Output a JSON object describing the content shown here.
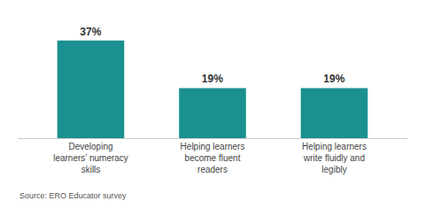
{
  "chart_data": {
    "type": "bar",
    "categories": [
      "Developing\nlearners’ numeracy\nskills",
      "Helping learners\nbecome fluent\nreaders",
      "Helping learners\nwrite fluidly and\nlegibly"
    ],
    "values": [
      37,
      19,
      19
    ],
    "value_labels": [
      "37%",
      "19%",
      "19%"
    ],
    "data_labels": true,
    "color": "#1a9090",
    "ylim": [
      0,
      45
    ],
    "tick_labels": "x",
    "grid": false,
    "annotations": [
      "Source: ERO Educator survey"
    ]
  }
}
